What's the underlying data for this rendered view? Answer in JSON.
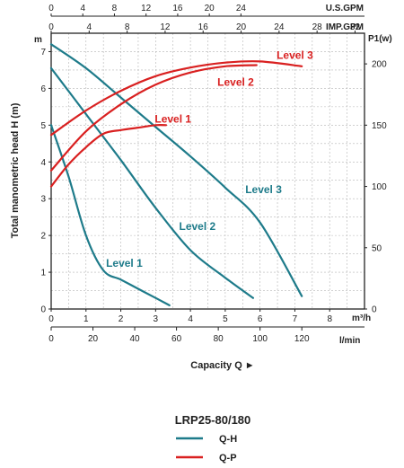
{
  "model": "LRP25-80/180",
  "colors": {
    "qh": "#1e7b8a",
    "qp": "#d92020",
    "grid": "#b5b5b5",
    "axis": "#222222"
  },
  "legend": [
    {
      "label": "Q-H",
      "color": "#1e7b8a"
    },
    {
      "label": "Q-P",
      "color": "#d92020"
    }
  ],
  "axes": {
    "left_unit": "m",
    "left_title": "Total manometric head H (m)",
    "left_ticks": [
      "0",
      "1",
      "2",
      "3",
      "4",
      "5",
      "6",
      "7"
    ],
    "right_unit": "P1(w)",
    "right_ticks": [
      "0",
      "50",
      "100",
      "150",
      "200"
    ],
    "bottom_unit1": "m³/h",
    "bottom_ticks1": [
      "0",
      "1",
      "2",
      "3",
      "4",
      "5",
      "6",
      "7",
      "8"
    ],
    "bottom_unit2": "l/min",
    "bottom_ticks2": [
      "0",
      "20",
      "40",
      "60",
      "80",
      "100",
      "120"
    ],
    "bottom_title": "Capacity Q ►",
    "top_unit1": "U.S.GPM",
    "top_ticks1": [
      "0",
      "4",
      "8",
      "12",
      "16",
      "20",
      "24"
    ],
    "top_unit2": "IMP.GPM",
    "top_ticks2": [
      "0",
      "4",
      "8",
      "12",
      "16",
      "20",
      "24",
      "28",
      "32"
    ]
  },
  "chart_data": {
    "type": "line",
    "xlabel": "Capacity Q",
    "x_unit": "m³/h",
    "xlim": [
      0,
      9
    ],
    "ylabel": "Total manometric head H (m)",
    "ylim": [
      0,
      7.5
    ],
    "y2label": "P1(w)",
    "y2lim": [
      0,
      225
    ],
    "grid": true,
    "series": [
      {
        "name": "Level 1",
        "kind": "Q-H",
        "axis": "left",
        "x": [
          0,
          0.5,
          1.0,
          1.5,
          2.0,
          2.5,
          3.0,
          3.4
        ],
        "y": [
          5.0,
          3.6,
          2.0,
          1.05,
          0.8,
          0.55,
          0.3,
          0.1
        ]
      },
      {
        "name": "Level 2",
        "kind": "Q-H",
        "axis": "left",
        "x": [
          0,
          1.0,
          2.0,
          3.0,
          4.0,
          5.0,
          5.8
        ],
        "y": [
          6.55,
          5.3,
          4.05,
          2.75,
          1.6,
          0.85,
          0.3
        ]
      },
      {
        "name": "Level 3",
        "kind": "Q-H",
        "axis": "left",
        "x": [
          0,
          1.0,
          2.0,
          3.0,
          4.0,
          5.0,
          6.0,
          7.2
        ],
        "y": [
          7.2,
          6.55,
          5.75,
          4.95,
          4.15,
          3.3,
          2.35,
          0.35
        ]
      },
      {
        "name": "Level 1",
        "kind": "Q-P",
        "axis": "right",
        "x": [
          0,
          0.5,
          1.0,
          1.5,
          2.0,
          2.5,
          3.0,
          3.3
        ],
        "y": [
          100,
          118,
          132,
          143,
          146,
          148,
          150,
          150
        ]
      },
      {
        "name": "Level 2",
        "kind": "Q-P",
        "axis": "right",
        "x": [
          0,
          1.0,
          2.0,
          3.0,
          4.0,
          5.0,
          5.9
        ],
        "y": [
          113,
          145,
          167,
          183,
          193,
          198,
          199
        ]
      },
      {
        "name": "Level 3",
        "kind": "Q-P",
        "axis": "right",
        "x": [
          0,
          1.0,
          2.0,
          3.0,
          4.0,
          5.0,
          6.0,
          7.2
        ],
        "y": [
          142,
          162,
          178,
          190,
          197,
          201,
          202,
          198
        ]
      }
    ],
    "labels": [
      {
        "text": "Level 1",
        "kind": "Q-H",
        "x": 2.1,
        "y": 1.15
      },
      {
        "text": "Level 2",
        "kind": "Q-H",
        "x": 4.2,
        "y": 2.15
      },
      {
        "text": "Level 3",
        "kind": "Q-H",
        "x": 6.1,
        "y": 3.15
      },
      {
        "text": "Level 1",
        "kind": "Q-P",
        "x": 3.5,
        "y": 152
      },
      {
        "text": "Level 2",
        "kind": "Q-P",
        "x": 5.3,
        "y": 182
      },
      {
        "text": "Level 3",
        "kind": "Q-P",
        "x": 7.0,
        "y": 204
      }
    ]
  }
}
